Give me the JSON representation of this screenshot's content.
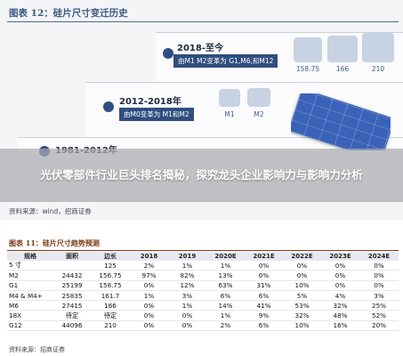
{
  "figure_top": {
    "title": "图表 12：硅片尺寸变迁历史",
    "eras": [
      {
        "title": "2018-至今",
        "desc": "由M1 M2变革为 G1,M6,和M12"
      },
      {
        "title": "2012-2018年",
        "desc": "由M0变革为 M1和M2"
      },
      {
        "title": "1981-2012年",
        "desc": ""
      }
    ],
    "wafer_labels": [
      "158.75",
      "166",
      "210",
      "M1",
      "M2"
    ],
    "source": "资料来源：wind，招商证券"
  },
  "headline": "光伏零部件行业巨头排名揭秘，探究龙头企业影响力与影响力分析",
  "figure_bottom": {
    "title": "图表 11：硅片尺寸趋势预测",
    "headers": [
      "规格",
      "面积",
      "边长",
      "2018",
      "2019",
      "2020E",
      "2021E",
      "2022E",
      "2023E",
      "2024E"
    ],
    "rows": [
      [
        "5 寸",
        "",
        "125",
        "2%",
        "1%",
        "1%",
        "0%",
        "0%",
        "0%",
        "0%"
      ],
      [
        "M2",
        "24432",
        "156.75",
        "97%",
        "82%",
        "13%",
        "0%",
        "0%",
        "0%",
        "0%"
      ],
      [
        "G1",
        "25199",
        "158.75",
        "0%",
        "12%",
        "63%",
        "31%",
        "10%",
        "0%",
        "0%"
      ],
      [
        "M4 & M4+",
        "25835",
        "161.7",
        "1%",
        "3%",
        "6%",
        "6%",
        "5%",
        "4%",
        "3%"
      ],
      [
        "M6",
        "27415",
        "166",
        "0%",
        "1%",
        "14%",
        "41%",
        "53%",
        "32%",
        "25%"
      ],
      [
        "18X",
        "待定",
        "待定",
        "0%",
        "0%",
        "1%",
        "9%",
        "32%",
        "48%",
        "52%"
      ],
      [
        "G12",
        "44096",
        "210",
        "0%",
        "0%",
        "2%",
        "6%",
        "10%",
        "16%",
        "20%"
      ]
    ],
    "source": "资料来源：招商证券"
  },
  "colors": {
    "accent_blue": "#2f4e7e",
    "table_title": "#7a3a14",
    "wafer_light": "#c9d4e4",
    "wafer_blue": "#2f5fb0"
  }
}
